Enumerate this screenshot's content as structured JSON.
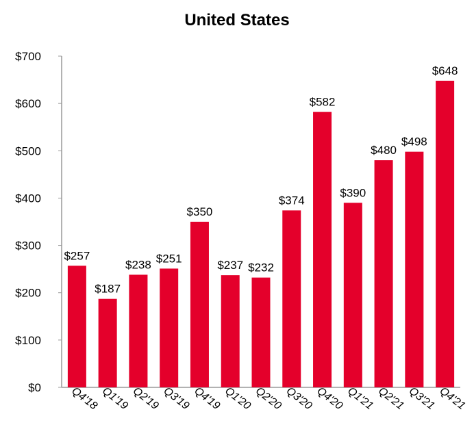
{
  "chart_data": {
    "type": "bar",
    "title": "United States",
    "xlabel": "",
    "ylabel": "",
    "categories": [
      "Q4'18",
      "Q1'19",
      "Q2'19",
      "Q3'19",
      "Q4'19",
      "Q1'20",
      "Q2'20",
      "Q3'20",
      "Q4'20",
      "Q1'21",
      "Q2'21",
      "Q3'21",
      "Q4'21"
    ],
    "values": [
      257,
      187,
      238,
      251,
      350,
      237,
      232,
      374,
      582,
      390,
      480,
      498,
      648
    ],
    "value_labels": [
      "$257",
      "$187",
      "$238",
      "$251",
      "$350",
      "$237",
      "$232",
      "$374",
      "$582",
      "$390",
      "$480",
      "$498",
      "$648"
    ],
    "ylim": [
      0,
      700
    ],
    "yticks": [
      0,
      100,
      200,
      300,
      400,
      500,
      600,
      700
    ],
    "ytick_labels": [
      "$0",
      "$100",
      "$200",
      "$300",
      "$400",
      "$500",
      "$600",
      "$700"
    ],
    "grid": false,
    "legend": "none",
    "bar_color": "#e4002b"
  }
}
